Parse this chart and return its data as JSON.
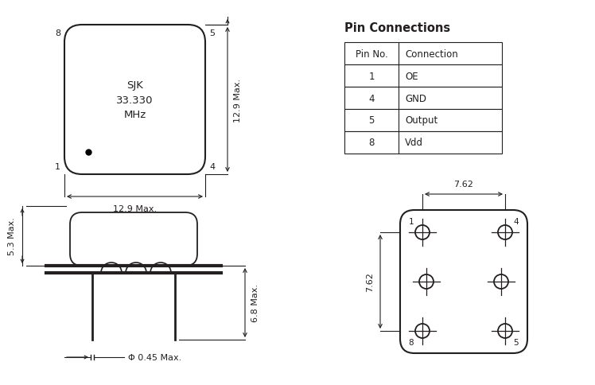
{
  "bg_color": "#ffffff",
  "line_color": "#231f20",
  "text_color": "#231f20",
  "title_table": "Pin Connections",
  "table_headers": [
    "Pin No.",
    "Connection"
  ],
  "table_rows": [
    [
      "1",
      "OE"
    ],
    [
      "4",
      "GND"
    ],
    [
      "5",
      "Output"
    ],
    [
      "8",
      "Vdd"
    ]
  ],
  "top_view_label": "SJK\n33.330\nMHz",
  "corner_pins": {
    "tl": "8",
    "tr": "5",
    "bl": "1",
    "br": "4"
  },
  "dim_width": "12.9 Max.",
  "dim_height": "12.9 Max.",
  "side_dim_top": "5.3 Max.",
  "side_dim_bot": "6.8 Max.",
  "pin_dia": "Φ 0.45 Max.",
  "bottom_dim_w": "7.62",
  "bottom_dim_h": "7.62"
}
